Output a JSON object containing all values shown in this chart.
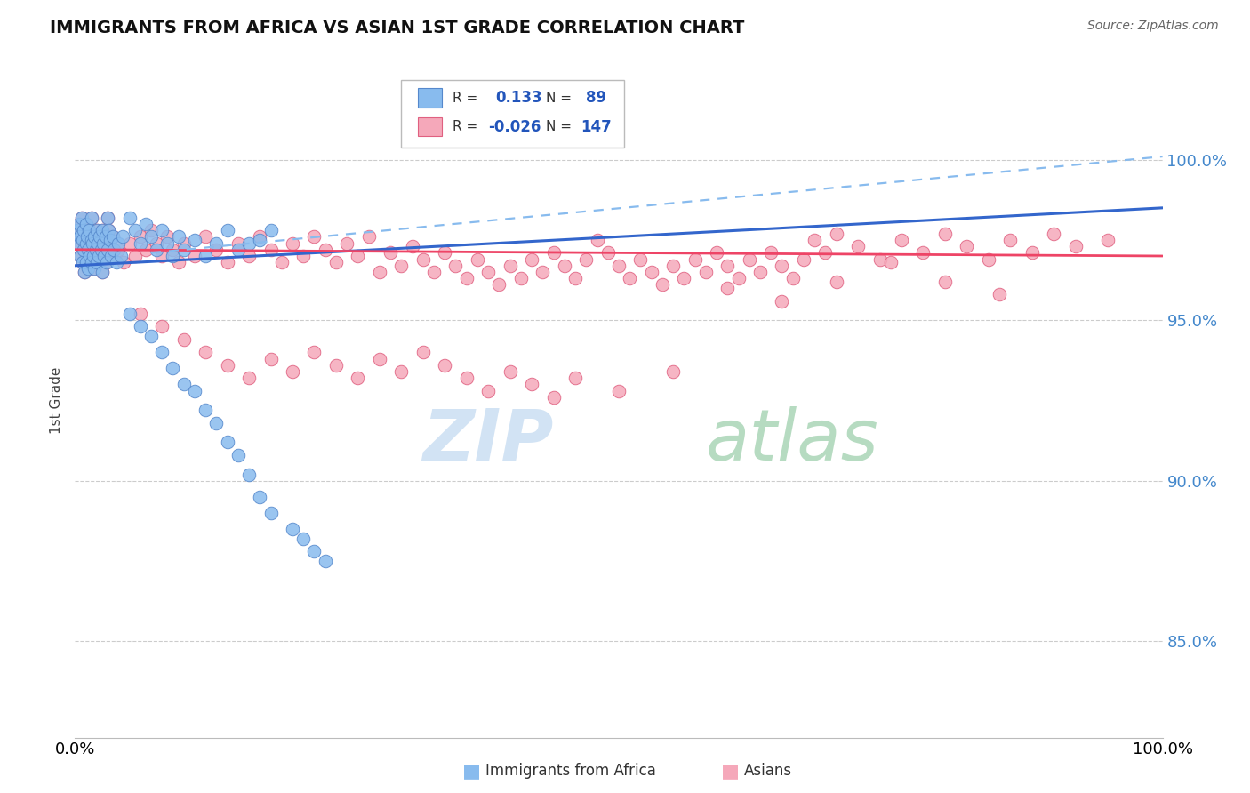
{
  "title": "IMMIGRANTS FROM AFRICA VS ASIAN 1ST GRADE CORRELATION CHART",
  "source": "Source: ZipAtlas.com",
  "ylabel": "1st Grade",
  "y_tick_labels": [
    "85.0%",
    "90.0%",
    "95.0%",
    "100.0%"
  ],
  "y_tick_values": [
    0.85,
    0.9,
    0.95,
    1.0
  ],
  "x_range": [
    0.0,
    1.0
  ],
  "y_range": [
    0.82,
    1.03
  ],
  "legend_r_africa": "0.133",
  "legend_n_africa": "89",
  "legend_r_asian": "-0.026",
  "legend_n_asian": "147",
  "africa_color": "#88bbee",
  "asia_color": "#f5a8ba",
  "africa_edge": "#5588cc",
  "asia_edge": "#e06080",
  "trendline_africa_color": "#3366cc",
  "trendline_asia_color": "#ee4466",
  "dashed_line_color": "#88bbee",
  "background_color": "#ffffff",
  "africa_trend": [
    0.0,
    0.967,
    1.0,
    0.985
  ],
  "asia_trend": [
    0.0,
    0.972,
    1.0,
    0.97
  ],
  "dash_line": [
    0.07,
    0.971,
    1.0,
    1.001
  ],
  "zip_color": "#c0d8f0",
  "atlas_color": "#90c8a0"
}
